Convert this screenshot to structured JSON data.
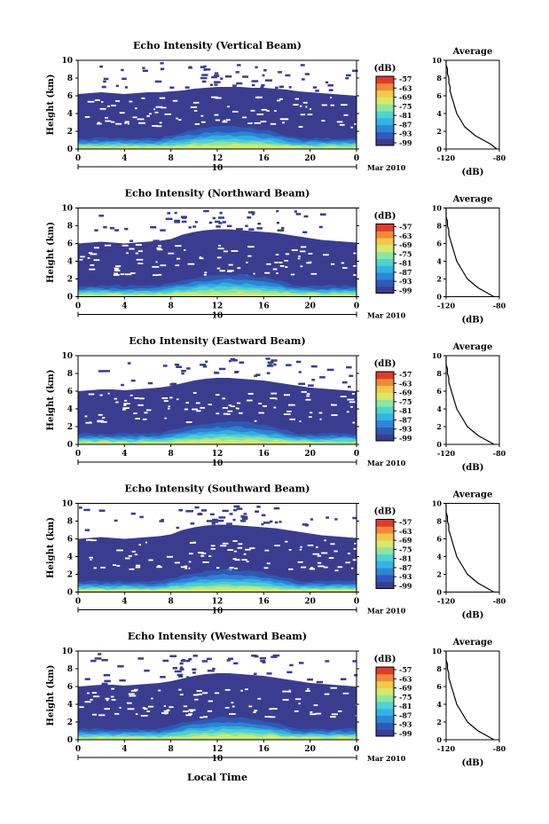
{
  "figure": {
    "shared_xlabel": "Local Time",
    "date_label": "Mar 2010",
    "day_label": "10"
  },
  "chart_data": [
    {
      "type": "heatmap",
      "title": "Echo Intensity (Vertical Beam)",
      "xlabel": "",
      "ylabel": "Height (km)",
      "xlim": [
        0,
        24
      ],
      "ylim": [
        0,
        10
      ],
      "xticks": [
        "0",
        "4",
        "8",
        "12",
        "16",
        "20",
        "0"
      ],
      "yticks": [
        "0",
        "2",
        "4",
        "6",
        "8",
        "10"
      ],
      "colorbar": {
        "label": "(dB)",
        "ticks": [
          "-57",
          "-63",
          "-69",
          "-75",
          "-81",
          "-87",
          "-93",
          "-99"
        ]
      },
      "echo_top_km": [
        6.2,
        6.3,
        6.4,
        6.3,
        6.2,
        6.3,
        6.4,
        6.4,
        6.5,
        6.6,
        6.8,
        6.9,
        7.0,
        7.0,
        7.0,
        6.9,
        6.9,
        6.8,
        6.7,
        6.5,
        6.4,
        6.3,
        6.2,
        6.1,
        6.0
      ],
      "average_profile": {
        "title": "Average",
        "xlabel": "(dB)",
        "xticks": [
          "-120",
          "-80"
        ],
        "xlim": [
          -120,
          -80
        ],
        "heights_km": [
          0,
          0.5,
          1,
          1.5,
          2,
          2.5,
          3,
          3.5,
          4,
          4.5,
          5,
          5.5,
          6,
          6.5,
          7,
          7.5,
          8,
          8.5,
          9,
          9.5,
          10
        ],
        "values_db": [
          -82,
          -86,
          -92,
          -98,
          -102,
          -106,
          -108,
          -110,
          -112,
          -113,
          -114,
          -115,
          -116,
          -117,
          -117,
          -118,
          -118,
          -119,
          -119,
          -120,
          -120
        ]
      }
    },
    {
      "type": "heatmap",
      "title": "Echo Intensity (Northward Beam)",
      "xlabel": "",
      "ylabel": "Height (km)",
      "xlim": [
        0,
        24
      ],
      "ylim": [
        0,
        10
      ],
      "xticks": [
        "0",
        "4",
        "8",
        "12",
        "16",
        "20",
        "0"
      ],
      "yticks": [
        "0",
        "2",
        "4",
        "6",
        "8",
        "10"
      ],
      "colorbar": {
        "label": "(dB)",
        "ticks": [
          "-57",
          "-63",
          "-69",
          "-75",
          "-81",
          "-87",
          "-93",
          "-99"
        ]
      },
      "echo_top_km": [
        6.0,
        6.1,
        6.2,
        6.1,
        6.0,
        6.1,
        6.2,
        6.3,
        6.5,
        7.0,
        7.3,
        7.5,
        7.6,
        7.6,
        7.5,
        7.4,
        7.3,
        7.2,
        7.0,
        6.8,
        6.6,
        6.4,
        6.3,
        6.2,
        6.1
      ],
      "average_profile": {
        "title": "Average",
        "xlabel": "(dB)",
        "xticks": [
          "-120",
          "-80"
        ],
        "xlim": [
          -120,
          -80
        ],
        "heights_km": [
          0,
          0.5,
          1,
          1.5,
          2,
          2.5,
          3,
          3.5,
          4,
          4.5,
          5,
          5.5,
          6,
          6.5,
          7,
          7.5,
          8,
          8.5,
          9,
          9.5,
          10
        ],
        "values_db": [
          -84,
          -90,
          -96,
          -100,
          -104,
          -106,
          -108,
          -110,
          -112,
          -113,
          -114,
          -115,
          -116,
          -117,
          -118,
          -118,
          -119,
          -119,
          -120,
          -120,
          -120
        ]
      }
    },
    {
      "type": "heatmap",
      "title": "Echo Intensity (Eastward Beam)",
      "xlabel": "",
      "ylabel": "Height (km)",
      "xlim": [
        0,
        24
      ],
      "ylim": [
        0,
        10
      ],
      "xticks": [
        "0",
        "4",
        "8",
        "12",
        "16",
        "20",
        "0"
      ],
      "yticks": [
        "0",
        "2",
        "4",
        "6",
        "8",
        "10"
      ],
      "colorbar": {
        "label": "(dB)",
        "ticks": [
          "-57",
          "-63",
          "-69",
          "-75",
          "-81",
          "-87",
          "-93",
          "-99"
        ]
      },
      "echo_top_km": [
        6.0,
        6.1,
        6.2,
        6.2,
        6.1,
        6.2,
        6.3,
        6.4,
        6.6,
        6.9,
        7.2,
        7.4,
        7.5,
        7.5,
        7.4,
        7.3,
        7.2,
        7.0,
        6.8,
        6.6,
        6.4,
        6.3,
        6.2,
        6.1,
        6.0
      ],
      "average_profile": {
        "title": "Average",
        "xlabel": "(dB)",
        "xticks": [
          "-120",
          "-80"
        ],
        "xlim": [
          -120,
          -80
        ],
        "heights_km": [
          0,
          0.5,
          1,
          1.5,
          2,
          2.5,
          3,
          3.5,
          4,
          4.5,
          5,
          5.5,
          6,
          6.5,
          7,
          7.5,
          8,
          8.5,
          9,
          9.5,
          10
        ],
        "values_db": [
          -84,
          -90,
          -96,
          -100,
          -104,
          -106,
          -108,
          -110,
          -112,
          -113,
          -114,
          -115,
          -116,
          -117,
          -118,
          -118,
          -119,
          -119,
          -120,
          -120,
          -120
        ]
      }
    },
    {
      "type": "heatmap",
      "title": "Echo Intensity (Southward Beam)",
      "xlabel": "",
      "ylabel": "Height (km)",
      "xlim": [
        0,
        24
      ],
      "ylim": [
        0,
        10
      ],
      "xticks": [
        "0",
        "4",
        "8",
        "12",
        "16",
        "20",
        "0"
      ],
      "yticks": [
        "0",
        "2",
        "4",
        "6",
        "8",
        "10"
      ],
      "colorbar": {
        "label": "(dB)",
        "ticks": [
          "-57",
          "-63",
          "-69",
          "-75",
          "-81",
          "-87",
          "-93",
          "-99"
        ]
      },
      "echo_top_km": [
        6.0,
        6.1,
        6.2,
        6.1,
        6.0,
        6.1,
        6.2,
        6.3,
        6.5,
        7.0,
        7.3,
        7.5,
        7.6,
        7.6,
        7.5,
        7.4,
        7.3,
        7.2,
        7.0,
        6.8,
        6.6,
        6.4,
        6.3,
        6.2,
        6.1
      ],
      "average_profile": {
        "title": "Average",
        "xlabel": "(dB)",
        "xticks": [
          "-120",
          "-80"
        ],
        "xlim": [
          -120,
          -80
        ],
        "heights_km": [
          0,
          0.5,
          1,
          1.5,
          2,
          2.5,
          3,
          3.5,
          4,
          4.5,
          5,
          5.5,
          6,
          6.5,
          7,
          7.5,
          8,
          8.5,
          9,
          9.5,
          10
        ],
        "values_db": [
          -84,
          -90,
          -96,
          -100,
          -104,
          -106,
          -108,
          -110,
          -112,
          -113,
          -114,
          -115,
          -116,
          -117,
          -118,
          -118,
          -119,
          -119,
          -120,
          -120,
          -120
        ]
      }
    },
    {
      "type": "heatmap",
      "title": "Echo Intensity (Westward Beam)",
      "xlabel": "Local Time",
      "ylabel": "Height (km)",
      "xlim": [
        0,
        24
      ],
      "ylim": [
        0,
        10
      ],
      "xticks": [
        "0",
        "4",
        "8",
        "12",
        "16",
        "20",
        "0"
      ],
      "yticks": [
        "0",
        "2",
        "4",
        "6",
        "8",
        "10"
      ],
      "colorbar": {
        "label": "(dB)",
        "ticks": [
          "-57",
          "-63",
          "-69",
          "-75",
          "-81",
          "-87",
          "-93",
          "-99"
        ]
      },
      "echo_top_km": [
        6.0,
        6.1,
        6.2,
        6.2,
        6.1,
        6.2,
        6.3,
        6.4,
        6.6,
        6.9,
        7.2,
        7.4,
        7.5,
        7.5,
        7.4,
        7.3,
        7.2,
        7.0,
        6.8,
        6.6,
        6.4,
        6.3,
        6.2,
        6.1,
        6.0
      ],
      "average_profile": {
        "title": "Average",
        "xlabel": "(dB)",
        "xticks": [
          "-120",
          "-80"
        ],
        "xlim": [
          -120,
          -80
        ],
        "heights_km": [
          0,
          0.5,
          1,
          1.5,
          2,
          2.5,
          3,
          3.5,
          4,
          4.5,
          5,
          5.5,
          6,
          6.5,
          7,
          7.5,
          8,
          8.5,
          9,
          9.5,
          10
        ],
        "values_db": [
          -84,
          -90,
          -96,
          -100,
          -104,
          -106,
          -108,
          -110,
          -112,
          -113,
          -114,
          -115,
          -116,
          -117,
          -118,
          -118,
          -119,
          -119,
          -120,
          -120,
          -120
        ]
      }
    }
  ],
  "colors": {
    "background_echo": "#3a3d8f",
    "colormap": [
      "#3a3d8f",
      "#2f5bb8",
      "#2f86d6",
      "#33b3e6",
      "#4fd3cf",
      "#8ee6a0",
      "#d8e96a",
      "#f2c94a",
      "#f08a3a",
      "#e23a2a"
    ]
  }
}
